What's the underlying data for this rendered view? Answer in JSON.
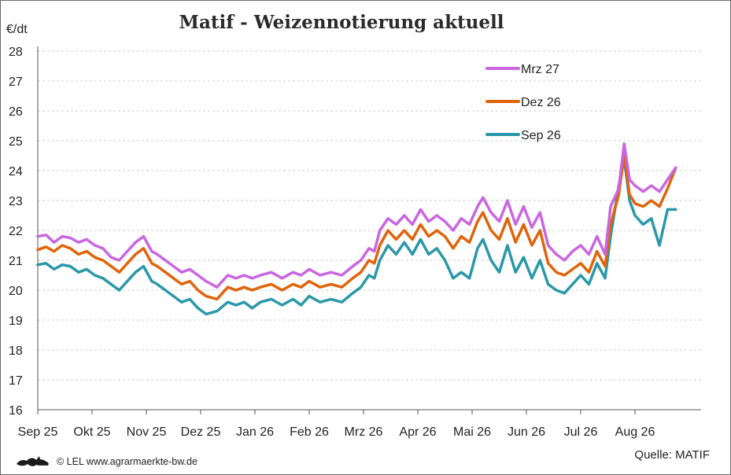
{
  "chart_data": {
    "type": "line",
    "title": "Matif - Weizennotierung aktuell",
    "ylabel": "€/dt",
    "ylim": [
      16,
      28
    ],
    "yticks": [
      16,
      17,
      18,
      19,
      20,
      21,
      22,
      23,
      24,
      25,
      26,
      27,
      28
    ],
    "x_months": [
      "Sep 25",
      "Okt 25",
      "Nov 25",
      "Dez 25",
      "Jan 26",
      "Feb 26",
      "Mrz 26",
      "Apr 26",
      "Mai 26",
      "Jun 26",
      "Jul 26",
      "Aug 26"
    ],
    "x_unit": "month index (0 = Sep 25, 11 = Aug 26)",
    "grid": true,
    "legend_position": "top-right",
    "series": [
      {
        "name": "Mrz 27",
        "color": "#c966e0",
        "x": [
          0.0,
          0.15,
          0.3,
          0.45,
          0.6,
          0.75,
          0.9,
          1.05,
          1.2,
          1.35,
          1.5,
          1.65,
          1.8,
          1.95,
          2.1,
          2.2,
          2.35,
          2.5,
          2.65,
          2.8,
          2.95,
          3.1,
          3.3,
          3.5,
          3.65,
          3.8,
          3.95,
          4.1,
          4.3,
          4.5,
          4.7,
          4.85,
          5.0,
          5.2,
          5.4,
          5.6,
          5.8,
          5.95,
          6.1,
          6.2,
          6.3,
          6.45,
          6.6,
          6.75,
          6.9,
          7.05,
          7.2,
          7.35,
          7.5,
          7.65,
          7.8,
          7.95,
          8.1,
          8.2,
          8.35,
          8.5,
          8.65,
          8.8,
          8.95,
          9.1,
          9.25,
          9.4,
          9.55,
          9.7,
          9.85,
          10.0,
          10.15,
          10.3,
          10.45,
          10.55,
          10.7,
          10.8,
          10.9,
          11.0,
          11.15,
          11.3,
          11.45,
          11.6,
          11.75
        ],
        "values": [
          21.8,
          21.85,
          21.6,
          21.8,
          21.75,
          21.6,
          21.7,
          21.5,
          21.4,
          21.1,
          21.0,
          21.3,
          21.6,
          21.8,
          21.3,
          21.2,
          21.0,
          20.8,
          20.6,
          20.7,
          20.5,
          20.3,
          20.1,
          20.5,
          20.4,
          20.5,
          20.4,
          20.5,
          20.6,
          20.4,
          20.6,
          20.5,
          20.7,
          20.5,
          20.6,
          20.5,
          20.8,
          21.0,
          21.4,
          21.3,
          22.0,
          22.4,
          22.2,
          22.5,
          22.2,
          22.7,
          22.3,
          22.5,
          22.3,
          22.0,
          22.4,
          22.2,
          22.8,
          23.1,
          22.6,
          22.3,
          23.0,
          22.2,
          22.8,
          22.1,
          22.6,
          21.5,
          21.2,
          21.0,
          21.3,
          21.5,
          21.2,
          21.8,
          21.2,
          22.8,
          23.4,
          24.9,
          23.7,
          23.5,
          23.3,
          23.5,
          23.3,
          23.7,
          24.1
        ]
      },
      {
        "name": "Dez 26",
        "color": "#e0640a",
        "x": [
          0.0,
          0.15,
          0.3,
          0.45,
          0.6,
          0.75,
          0.9,
          1.05,
          1.2,
          1.35,
          1.5,
          1.65,
          1.8,
          1.95,
          2.1,
          2.2,
          2.35,
          2.5,
          2.65,
          2.8,
          2.95,
          3.1,
          3.3,
          3.5,
          3.65,
          3.8,
          3.95,
          4.1,
          4.3,
          4.5,
          4.7,
          4.85,
          5.0,
          5.2,
          5.4,
          5.6,
          5.8,
          5.95,
          6.1,
          6.2,
          6.3,
          6.45,
          6.6,
          6.75,
          6.9,
          7.05,
          7.2,
          7.35,
          7.5,
          7.65,
          7.8,
          7.95,
          8.1,
          8.2,
          8.35,
          8.5,
          8.65,
          8.8,
          8.95,
          9.1,
          9.25,
          9.4,
          9.55,
          9.7,
          9.85,
          10.0,
          10.15,
          10.3,
          10.45,
          10.55,
          10.7,
          10.8,
          10.9,
          11.0,
          11.15,
          11.3,
          11.45,
          11.6,
          11.75
        ],
        "values": [
          21.35,
          21.45,
          21.3,
          21.5,
          21.4,
          21.2,
          21.3,
          21.1,
          21.0,
          20.8,
          20.6,
          20.9,
          21.2,
          21.4,
          20.9,
          20.8,
          20.6,
          20.4,
          20.2,
          20.3,
          20.0,
          19.8,
          19.7,
          20.1,
          20.0,
          20.1,
          20.0,
          20.1,
          20.2,
          20.0,
          20.2,
          20.1,
          20.3,
          20.1,
          20.2,
          20.1,
          20.4,
          20.6,
          21.0,
          20.9,
          21.5,
          22.0,
          21.7,
          22.0,
          21.7,
          22.2,
          21.8,
          22.0,
          21.8,
          21.4,
          21.8,
          21.6,
          22.3,
          22.6,
          22.0,
          21.7,
          22.4,
          21.6,
          22.2,
          21.5,
          22.0,
          20.9,
          20.6,
          20.5,
          20.7,
          20.9,
          20.6,
          21.3,
          20.8,
          22.2,
          23.2,
          24.5,
          23.2,
          22.9,
          22.8,
          23.0,
          22.8,
          23.4,
          24.1
        ]
      },
      {
        "name": "Sep 26",
        "color": "#2a98a8",
        "x": [
          0.0,
          0.15,
          0.3,
          0.45,
          0.6,
          0.75,
          0.9,
          1.05,
          1.2,
          1.35,
          1.5,
          1.65,
          1.8,
          1.95,
          2.1,
          2.2,
          2.35,
          2.5,
          2.65,
          2.8,
          2.95,
          3.1,
          3.3,
          3.5,
          3.65,
          3.8,
          3.95,
          4.1,
          4.3,
          4.5,
          4.7,
          4.85,
          5.0,
          5.2,
          5.4,
          5.6,
          5.8,
          5.95,
          6.1,
          6.2,
          6.3,
          6.45,
          6.6,
          6.75,
          6.9,
          7.05,
          7.2,
          7.35,
          7.5,
          7.65,
          7.8,
          7.95,
          8.1,
          8.2,
          8.35,
          8.5,
          8.65,
          8.8,
          8.95,
          9.1,
          9.25,
          9.4,
          9.55,
          9.7,
          9.85,
          10.0,
          10.15,
          10.3,
          10.45,
          10.55,
          10.7,
          10.8,
          10.9,
          11.0,
          11.15,
          11.3,
          11.45,
          11.6,
          11.75
        ],
        "values": [
          20.85,
          20.9,
          20.7,
          20.85,
          20.8,
          20.6,
          20.7,
          20.5,
          20.4,
          20.2,
          20.0,
          20.3,
          20.6,
          20.8,
          20.3,
          20.2,
          20.0,
          19.8,
          19.6,
          19.7,
          19.4,
          19.2,
          19.3,
          19.6,
          19.5,
          19.6,
          19.4,
          19.6,
          19.7,
          19.5,
          19.7,
          19.5,
          19.8,
          19.6,
          19.7,
          19.6,
          19.9,
          20.1,
          20.5,
          20.4,
          21.0,
          21.5,
          21.2,
          21.6,
          21.2,
          21.7,
          21.2,
          21.4,
          21.0,
          20.4,
          20.6,
          20.4,
          21.4,
          21.7,
          21.0,
          20.6,
          21.5,
          20.6,
          21.1,
          20.4,
          21.0,
          20.2,
          20.0,
          19.9,
          20.2,
          20.5,
          20.2,
          20.9,
          20.4,
          21.8,
          23.5,
          24.4,
          23.0,
          22.5,
          22.2,
          22.4,
          21.5,
          22.7,
          22.7
        ]
      }
    ]
  },
  "footer": {
    "credit": "© LEL www.agrarmaerkte-bw.de",
    "source": "Quelle: MATIF",
    "logo_icon": "lion-logo-icon"
  }
}
